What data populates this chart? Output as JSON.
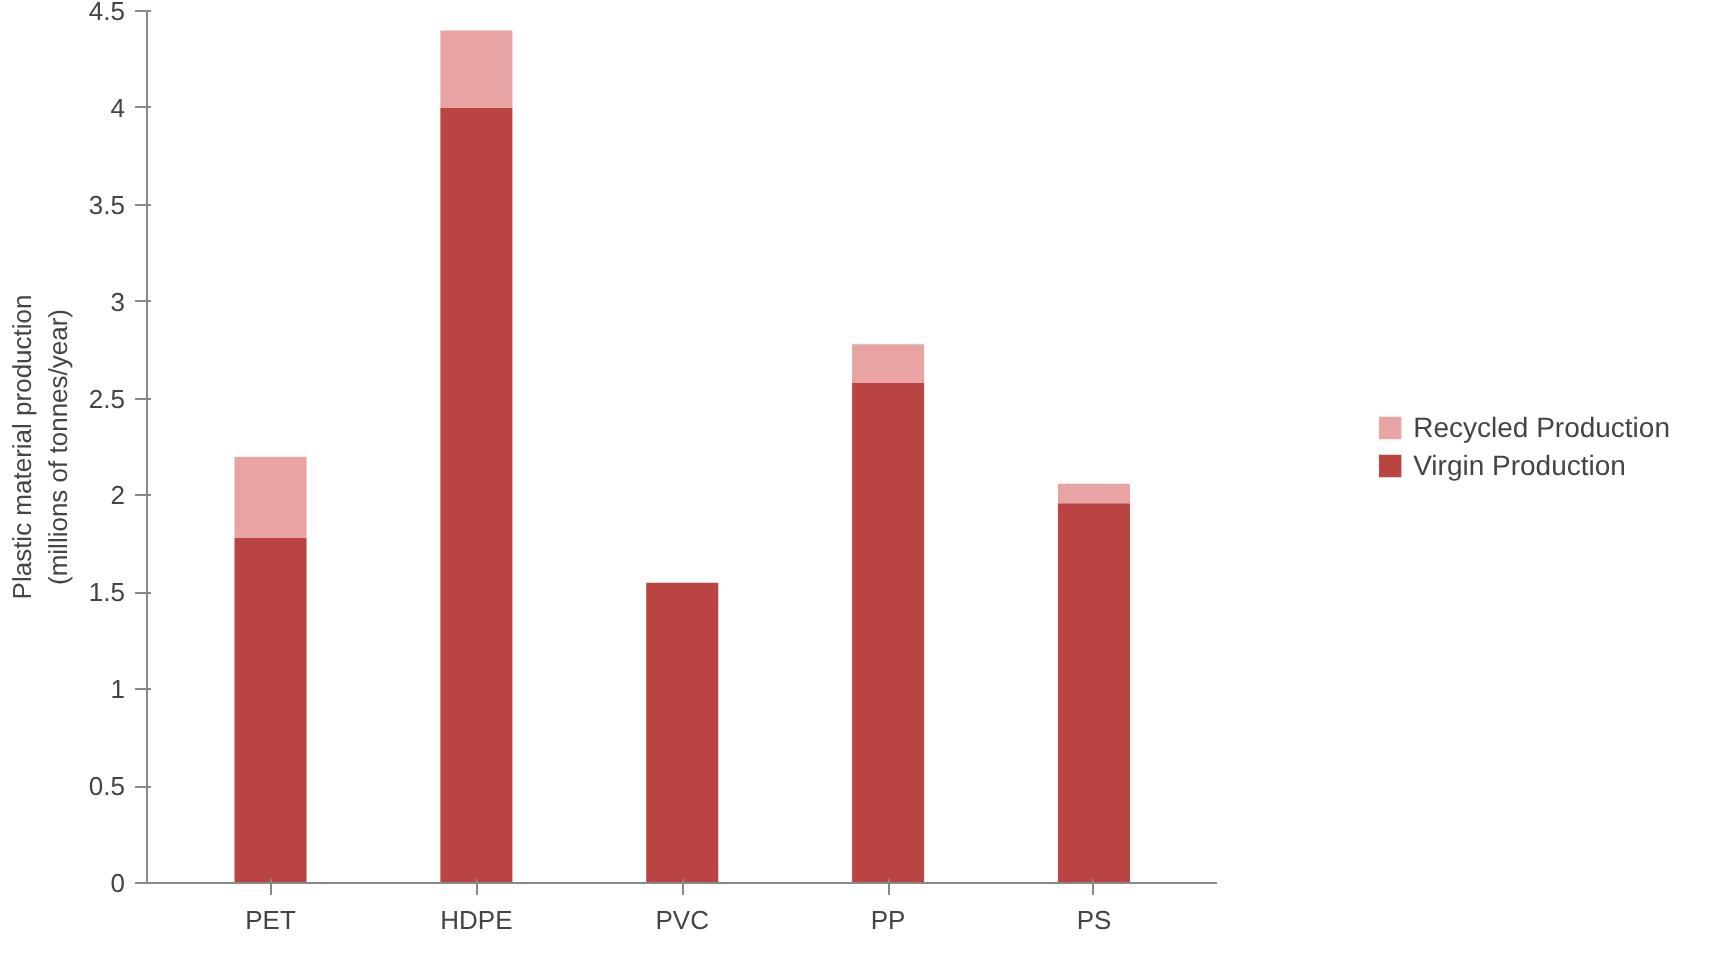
{
  "chart_data": {
    "type": "bar",
    "stacked": true,
    "ylabel": "Plastic material production\n(millions of tonnes/year)",
    "categories": [
      "PET",
      "HDPE",
      "PVC",
      "PP",
      "PS"
    ],
    "series": [
      {
        "name": "Virgin Production",
        "color": "#b94441",
        "values": [
          1.78,
          4.0,
          1.55,
          2.58,
          1.96
        ]
      },
      {
        "name": "Recycled Production",
        "color": "#e8a3a3",
        "values": [
          0.42,
          0.4,
          0,
          0.2,
          0.1
        ]
      }
    ],
    "ylim": [
      0,
      4.5
    ],
    "yticks": [
      0,
      0.5,
      1,
      1.5,
      2,
      2.5,
      3,
      3.5,
      4,
      4.5
    ],
    "grid": false,
    "legend": "right"
  }
}
